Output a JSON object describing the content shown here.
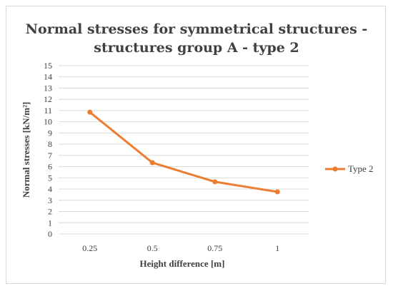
{
  "chart_data": {
    "type": "line",
    "title_lines": [
      "Normal stresses  for symmetrical structures -",
      "structures group A - type 2"
    ],
    "xlabel": "Height difference [m]",
    "ylabel": "Normal stresses [kN/m²]",
    "categories": [
      "0.25",
      "0.5",
      "0.75",
      "1"
    ],
    "series": [
      {
        "name": "Type 2",
        "values": [
          10.85,
          6.35,
          4.65,
          3.75
        ],
        "color": "#ed7d31"
      }
    ],
    "ylim": [
      0,
      15
    ],
    "yticks": [
      "0",
      "1",
      "2",
      "3",
      "4",
      "5",
      "6",
      "7",
      "8",
      "9",
      "10",
      "11",
      "12",
      "13",
      "14",
      "15"
    ],
    "grid": true,
    "legend": "right"
  }
}
